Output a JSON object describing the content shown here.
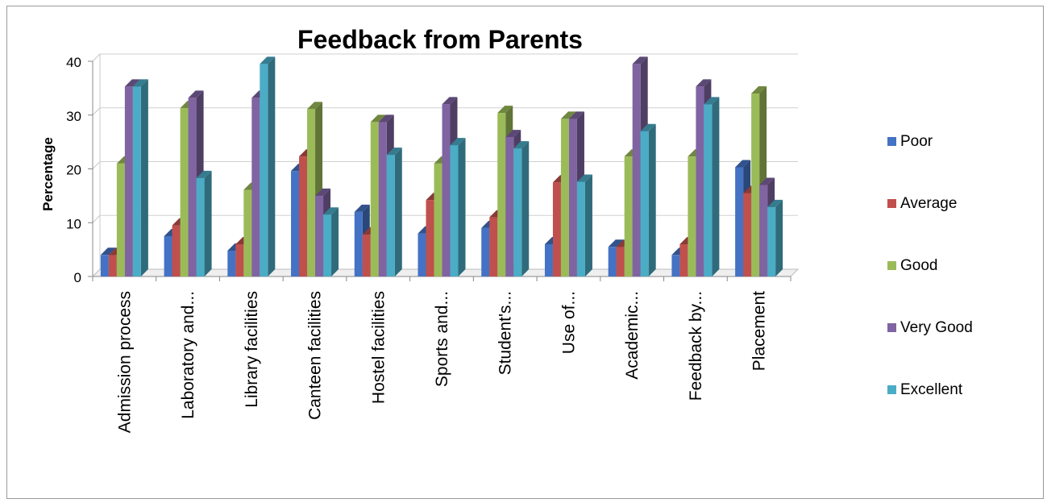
{
  "chart_data": {
    "type": "bar",
    "title": "Feedback from Parents",
    "ylabel": "Percentage",
    "xlabel": "",
    "ylim": [
      0,
      40
    ],
    "yticks": [
      0,
      10,
      20,
      30,
      40
    ],
    "grid": true,
    "legend_position": "right",
    "categories": [
      "Admission process",
      "Laboratory and...",
      "Library facilities",
      "Canteen facilities",
      "Hostel facilities",
      "Sports and...",
      "Student's...",
      "Use of...",
      "Academic...",
      "Feedback by...",
      "Placement"
    ],
    "series": [
      {
        "name": "Poor",
        "color": "#4472c4",
        "values": [
          4,
          7.5,
          4.8,
          19.6,
          12,
          8,
          9,
          6,
          5.5,
          4,
          20.3
        ]
      },
      {
        "name": "Average",
        "color": "#c0504d",
        "values": [
          4,
          9.5,
          6,
          22.3,
          7.8,
          14.2,
          11,
          17.5,
          5.5,
          6,
          15.5
        ]
      },
      {
        "name": "Good",
        "color": "#9bbb59",
        "values": [
          21,
          31.3,
          16.1,
          31.1,
          28.7,
          21,
          30.4,
          29.3,
          22.3,
          22.3,
          34
        ]
      },
      {
        "name": "Very Good",
        "color": "#8064a2",
        "values": [
          35.3,
          33.2,
          33.2,
          15,
          28.7,
          32,
          25.9,
          29.3,
          39.5,
          35.3,
          17
        ]
      },
      {
        "name": "Excellent",
        "color": "#4bacc6",
        "values": [
          35.3,
          18.3,
          39.5,
          11.5,
          22.6,
          24.4,
          23.8,
          17.6,
          27,
          32,
          12.9
        ]
      }
    ]
  }
}
